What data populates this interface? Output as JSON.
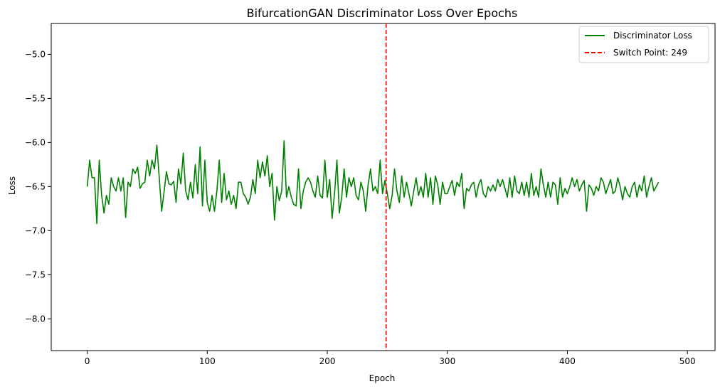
{
  "chart_data": {
    "type": "line",
    "title": "BifurcationGAN Discriminator Loss Over Epochs",
    "xlabel": "Epoch",
    "ylabel": "Loss",
    "xlim": [
      -30,
      523
    ],
    "ylim": [
      -8.36,
      -4.65
    ],
    "x_ticks": [
      0,
      100,
      200,
      300,
      400,
      500
    ],
    "y_ticks": [
      -8.0,
      -7.5,
      -7.0,
      -6.5,
      -6.0,
      -5.5,
      -5.0
    ],
    "grid": false,
    "legend_position": "top-right",
    "switch_point": {
      "x": 249,
      "label": "Switch Point: 249",
      "color": "#ff0000",
      "style": "dashed"
    },
    "series": [
      {
        "name": "Discriminator Loss",
        "color": "#008000",
        "x_start": 0,
        "x_step": 2,
        "values": [
          -6.5,
          -6.2,
          -6.4,
          -6.4,
          -6.92,
          -6.2,
          -6.6,
          -6.8,
          -6.6,
          -6.7,
          -6.4,
          -6.5,
          -6.55,
          -6.4,
          -6.55,
          -6.4,
          -6.85,
          -6.45,
          -6.5,
          -6.3,
          -6.35,
          -6.28,
          -6.52,
          -6.47,
          -6.45,
          -6.2,
          -6.38,
          -6.2,
          -6.3,
          -6.03,
          -6.4,
          -6.78,
          -6.56,
          -6.33,
          -6.47,
          -6.48,
          -6.44,
          -6.68,
          -6.3,
          -6.47,
          -6.12,
          -6.55,
          -6.65,
          -6.45,
          -6.63,
          -6.25,
          -6.58,
          -6.05,
          -6.72,
          -6.2,
          -6.68,
          -6.78,
          -6.6,
          -6.78,
          -6.55,
          -6.2,
          -6.68,
          -6.35,
          -6.65,
          -6.55,
          -6.7,
          -6.6,
          -6.75,
          -6.45,
          -6.45,
          -6.58,
          -6.62,
          -6.7,
          -6.62,
          -6.42,
          -6.58,
          -6.2,
          -6.4,
          -6.22,
          -6.38,
          -6.15,
          -6.5,
          -6.35,
          -6.88,
          -6.5,
          -6.66,
          -6.55,
          -5.98,
          -6.62,
          -6.5,
          -6.62,
          -6.7,
          -6.72,
          -6.3,
          -6.75,
          -6.55,
          -6.45,
          -6.4,
          -6.45,
          -6.55,
          -6.62,
          -6.38,
          -6.6,
          -6.63,
          -6.2,
          -6.62,
          -6.42,
          -6.86,
          -6.58,
          -6.2,
          -6.8,
          -6.62,
          -6.3,
          -6.62,
          -6.4,
          -6.5,
          -6.4,
          -6.6,
          -6.65,
          -6.45,
          -6.55,
          -6.78,
          -6.48,
          -6.3,
          -6.55,
          -6.5,
          -6.58,
          -6.2,
          -6.58,
          -6.43,
          -6.58,
          -6.75,
          -6.6,
          -6.3,
          -6.55,
          -6.68,
          -6.38,
          -6.62,
          -6.45,
          -6.58,
          -6.72,
          -6.55,
          -6.4,
          -6.6,
          -6.5,
          -6.62,
          -6.35,
          -6.62,
          -6.4,
          -6.7,
          -6.38,
          -6.48,
          -6.7,
          -6.45,
          -6.58,
          -6.58,
          -6.5,
          -6.43,
          -6.6,
          -6.45,
          -6.5,
          -6.35,
          -6.75,
          -6.52,
          -6.55,
          -6.48,
          -6.45,
          -6.62,
          -6.48,
          -6.42,
          -6.58,
          -6.62,
          -6.5,
          -6.55,
          -6.48,
          -6.55,
          -6.42,
          -6.5,
          -6.42,
          -6.52,
          -6.62,
          -6.4,
          -6.62,
          -6.38,
          -6.55,
          -6.58,
          -6.45,
          -6.6,
          -6.45,
          -6.62,
          -6.35,
          -6.6,
          -6.5,
          -6.62,
          -6.3,
          -6.48,
          -6.62,
          -6.45,
          -6.62,
          -6.45,
          -6.48,
          -6.7,
          -6.4,
          -6.62,
          -6.52,
          -6.58,
          -6.5,
          -6.4,
          -6.5,
          -6.42,
          -6.55,
          -6.48,
          -6.43,
          -6.78,
          -6.48,
          -6.52,
          -6.6,
          -6.5,
          -6.55,
          -6.4,
          -6.45,
          -6.58,
          -6.5,
          -6.42,
          -6.58,
          -6.55,
          -6.4,
          -6.5,
          -6.65,
          -6.5,
          -6.58,
          -6.62,
          -6.5,
          -6.45,
          -6.62,
          -6.48,
          -6.55,
          -6.38,
          -6.62,
          -6.5,
          -6.4,
          -6.55,
          -6.5,
          -6.45
        ]
      }
    ]
  }
}
